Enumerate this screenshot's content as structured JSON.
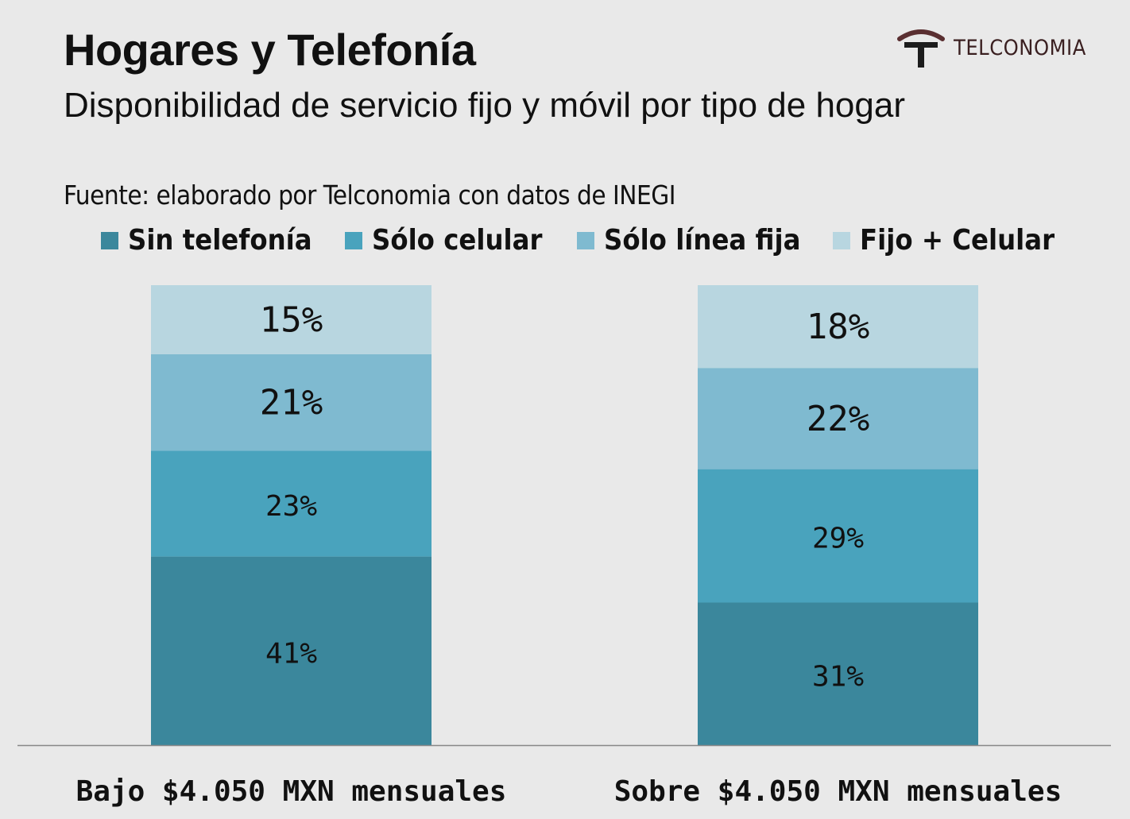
{
  "header": {
    "title": "Hogares y Telefonía",
    "subtitle": "Disponibilidad de servicio fijo y móvil por tipo de hogar",
    "source": "Fuente: elaborado por Telconomia con datos de INEGI"
  },
  "brand": {
    "name": "TELCONOMIA",
    "icon": "antenna-t-logo-icon",
    "color": "#5a2f31"
  },
  "legend": [
    {
      "label": "Sin telefonía",
      "color": "#3b879c"
    },
    {
      "label": "Sólo celular",
      "color": "#49a3bd"
    },
    {
      "label": "Sólo línea fija",
      "color": "#7fbad0"
    },
    {
      "label": "Fijo + Celular",
      "color": "#b8d6e0"
    }
  ],
  "chart_data": {
    "type": "bar",
    "stacked": true,
    "categories": [
      "Bajo $4.050 MXN mensuales",
      "Sobre $4.050 MXN mensuales"
    ],
    "series": [
      {
        "name": "Sin telefonía",
        "values": [
          41,
          31
        ],
        "color": "#3b879c"
      },
      {
        "name": "Sólo celular",
        "values": [
          23,
          29
        ],
        "color": "#49a3bd"
      },
      {
        "name": "Sólo línea fija",
        "values": [
          21,
          22
        ],
        "color": "#7fbad0"
      },
      {
        "name": "Fijo + Celular",
        "values": [
          15,
          18
        ],
        "color": "#b8d6e0"
      }
    ],
    "value_suffix": "%",
    "ylim": [
      0,
      100
    ],
    "grid": false,
    "legend_position": "top"
  }
}
